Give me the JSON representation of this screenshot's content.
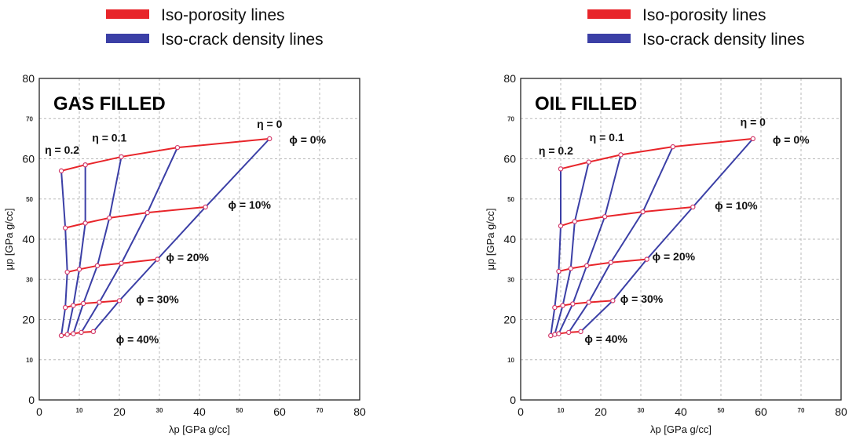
{
  "legend": [
    {
      "label": "Iso-porosity lines",
      "color": "#e8252a"
    },
    {
      "label": "Iso-crack density lines",
      "color": "#3b3fa6"
    }
  ],
  "colors": {
    "iso_porosity": "#e8252a",
    "iso_crack": "#3b3fa6",
    "grid": "#b8b8b8"
  },
  "chart_data": [
    {
      "type": "line",
      "title": "GAS FILLED",
      "xlabel": "λp [GPa g/cc]",
      "ylabel": "μp [GPa g/cc]",
      "xlim": [
        0,
        80
      ],
      "ylim": [
        0,
        80
      ],
      "x_ticks": [
        0,
        10,
        20,
        30,
        40,
        50,
        60,
        70,
        80
      ],
      "y_ticks": [
        0,
        10,
        20,
        30,
        40,
        50,
        60,
        70,
        80
      ],
      "grid": true,
      "iso_porosity_lines": [
        {
          "x": [
            5.5,
            11.5,
            20.5,
            34.5,
            57.5
          ],
          "y": [
            57,
            58.5,
            60.5,
            62.8,
            65
          ]
        },
        {
          "x": [
            6.5,
            11.5,
            17.5,
            27,
            41.5
          ],
          "y": [
            42.8,
            44,
            45.3,
            46.6,
            48
          ]
        },
        {
          "x": [
            7,
            10,
            14.5,
            20.5,
            29.5
          ],
          "y": [
            31.8,
            32.5,
            33.4,
            34,
            35
          ]
        },
        {
          "x": [
            6.5,
            8.5,
            11,
            15,
            20
          ],
          "y": [
            23,
            23.5,
            24,
            24.3,
            24.7
          ]
        },
        {
          "x": [
            5.5,
            7,
            8.5,
            10.5,
            13.5
          ],
          "y": [
            16,
            16.3,
            16.5,
            16.8,
            17
          ]
        }
      ],
      "iso_crack_lines": [
        {
          "x": [
            5.5,
            6.5,
            7,
            6.5,
            5.5
          ],
          "y": [
            57,
            42.8,
            31.8,
            23,
            16
          ]
        },
        {
          "x": [
            11.5,
            11.5,
            10,
            8.5,
            7
          ],
          "y": [
            58.5,
            44,
            32.5,
            23.5,
            16.3
          ]
        },
        {
          "x": [
            20.5,
            17.5,
            14.5,
            11,
            8.5
          ],
          "y": [
            60.5,
            45.3,
            33.4,
            24,
            16.5
          ]
        },
        {
          "x": [
            34.5,
            27,
            20.5,
            15,
            10.5
          ],
          "y": [
            62.8,
            46.6,
            34,
            24.3,
            16.8
          ]
        },
        {
          "x": [
            57.5,
            41.5,
            29.5,
            20,
            13.5
          ],
          "y": [
            65,
            48,
            35,
            24.7,
            17
          ]
        }
      ],
      "annotations": [
        {
          "text": "η = 0",
          "x": 57.5,
          "y": 67.7
        },
        {
          "text": "η = 0.1",
          "x": 17.5,
          "y": 64.3
        },
        {
          "text": "η = 0.2",
          "x": 5.7,
          "y": 61.3
        },
        {
          "text": "ϕ = 0%",
          "x": 67,
          "y": 63.8
        },
        {
          "text": "ϕ = 10%",
          "x": 52.5,
          "y": 47.6
        },
        {
          "text": "ϕ = 20%",
          "x": 37,
          "y": 34.5
        },
        {
          "text": "ϕ = 30%",
          "x": 29.5,
          "y": 24.1
        },
        {
          "text": "ϕ = 40%",
          "x": 24.5,
          "y": 14.1
        }
      ]
    },
    {
      "type": "line",
      "title": "OIL FILLED",
      "xlabel": "λp [GPa g/cc]",
      "ylabel": "μp [GPa g/cc]",
      "xlim": [
        0,
        80
      ],
      "ylim": [
        0,
        80
      ],
      "x_ticks": [
        0,
        10,
        20,
        30,
        40,
        50,
        60,
        70,
        80
      ],
      "y_ticks": [
        0,
        10,
        20,
        30,
        40,
        50,
        60,
        70,
        80
      ],
      "grid": true,
      "iso_porosity_lines": [
        {
          "x": [
            10,
            17,
            25,
            38,
            58
          ],
          "y": [
            57.5,
            59.2,
            61,
            63,
            65
          ]
        },
        {
          "x": [
            10,
            13.5,
            21,
            30.5,
            43
          ],
          "y": [
            43.3,
            44.4,
            45.6,
            46.8,
            48
          ]
        },
        {
          "x": [
            9.5,
            12.5,
            16.5,
            22.5,
            31.5
          ],
          "y": [
            32,
            32.7,
            33.4,
            34.2,
            35
          ]
        },
        {
          "x": [
            8.5,
            10.5,
            13,
            17,
            23
          ],
          "y": [
            23,
            23.5,
            23.9,
            24.3,
            24.7
          ]
        },
        {
          "x": [
            7.5,
            8.5,
            9.5,
            12,
            15
          ],
          "y": [
            16,
            16.3,
            16.5,
            16.8,
            17
          ]
        }
      ],
      "iso_crack_lines": [
        {
          "x": [
            10,
            10,
            9.5,
            8.5,
            7.5
          ],
          "y": [
            57.5,
            43.3,
            32,
            23,
            16
          ]
        },
        {
          "x": [
            17,
            13.5,
            12.5,
            10.5,
            8.5
          ],
          "y": [
            59.2,
            44.4,
            32.7,
            23.5,
            16.3
          ]
        },
        {
          "x": [
            25,
            21,
            16.5,
            13,
            9.5
          ],
          "y": [
            61,
            45.6,
            33.4,
            23.9,
            16.5
          ]
        },
        {
          "x": [
            38,
            30.5,
            22.5,
            17,
            12
          ],
          "y": [
            63,
            46.8,
            34.2,
            24.3,
            16.8
          ]
        },
        {
          "x": [
            58,
            43,
            31.5,
            23,
            15
          ],
          "y": [
            65,
            48,
            35,
            24.7,
            17
          ]
        }
      ],
      "annotations": [
        {
          "text": "η = 0",
          "x": 58,
          "y": 68.2
        },
        {
          "text": "η = 0.1",
          "x": 21.5,
          "y": 64.4
        },
        {
          "text": "η = 0.2",
          "x": 8.8,
          "y": 61.1
        },
        {
          "text": "ϕ = 0%",
          "x": 67.5,
          "y": 63.8
        },
        {
          "text": "ϕ = 10%",
          "x": 53.8,
          "y": 47.4
        },
        {
          "text": "ϕ = 20%",
          "x": 38.2,
          "y": 34.7
        },
        {
          "text": "ϕ = 30%",
          "x": 30.2,
          "y": 24.2
        },
        {
          "text": "ϕ = 40%",
          "x": 21.3,
          "y": 14.2
        }
      ]
    }
  ]
}
